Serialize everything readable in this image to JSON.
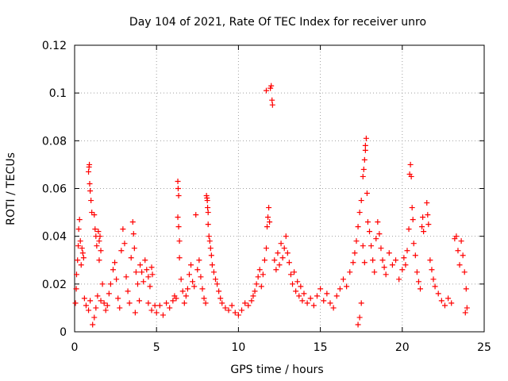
{
  "chart_data": {
    "type": "scatter",
    "title": "Day 104 of 2021, Rate Of TEC Index for receiver unro",
    "xlabel": "GPS time / hours",
    "ylabel": "ROTI / TECUs",
    "xlim": [
      0,
      25
    ],
    "ylim": [
      0,
      0.12
    ],
    "xticks": [
      "0",
      "5",
      "10",
      "15",
      "20",
      "25"
    ],
    "yticks": [
      "0",
      "0.02",
      "0.04",
      "0.06",
      "0.08",
      "0.1",
      "0.12"
    ],
    "grid": true,
    "marker": "+",
    "color": "#ff0000",
    "series": [
      {
        "points": [
          [
            0.05,
            0.012
          ],
          [
            0.1,
            0.018
          ],
          [
            0.12,
            0.024
          ],
          [
            0.18,
            0.03
          ],
          [
            0.22,
            0.036
          ],
          [
            0.25,
            0.043
          ],
          [
            0.3,
            0.047
          ],
          [
            0.35,
            0.038
          ],
          [
            0.4,
            0.028
          ],
          [
            0.45,
            0.035
          ],
          [
            0.5,
            0.033
          ],
          [
            0.55,
            0.031
          ],
          [
            0.6,
            0.014
          ],
          [
            0.7,
            0.011
          ],
          [
            0.85,
            0.009
          ],
          [
            0.95,
            0.013
          ],
          [
            0.85,
            0.067
          ],
          [
            0.88,
            0.069
          ],
          [
            0.9,
            0.07
          ],
          [
            0.92,
            0.062
          ],
          [
            0.95,
            0.059
          ],
          [
            1.0,
            0.055
          ],
          [
            1.05,
            0.05
          ],
          [
            1.2,
            0.049
          ],
          [
            1.25,
            0.043
          ],
          [
            1.3,
            0.04
          ],
          [
            1.35,
            0.036
          ],
          [
            1.45,
            0.042
          ],
          [
            1.5,
            0.038
          ],
          [
            1.55,
            0.04
          ],
          [
            1.6,
            0.034
          ],
          [
            1.5,
            0.03
          ],
          [
            1.1,
            0.003
          ],
          [
            1.2,
            0.006
          ],
          [
            1.3,
            0.01
          ],
          [
            1.4,
            0.015
          ],
          [
            1.6,
            0.013
          ],
          [
            1.7,
            0.02
          ],
          [
            1.8,
            0.012
          ],
          [
            1.9,
            0.009
          ],
          [
            2.0,
            0.011
          ],
          [
            2.1,
            0.016
          ],
          [
            2.2,
            0.02
          ],
          [
            2.35,
            0.026
          ],
          [
            2.45,
            0.029
          ],
          [
            2.55,
            0.022
          ],
          [
            2.65,
            0.014
          ],
          [
            2.75,
            0.01
          ],
          [
            2.85,
            0.034
          ],
          [
            2.95,
            0.043
          ],
          [
            3.05,
            0.037
          ],
          [
            3.15,
            0.023
          ],
          [
            3.25,
            0.017
          ],
          [
            3.35,
            0.012
          ],
          [
            3.45,
            0.031
          ],
          [
            3.55,
            0.046
          ],
          [
            3.6,
            0.041
          ],
          [
            3.65,
            0.035
          ],
          [
            3.75,
            0.025
          ],
          [
            3.85,
            0.02
          ],
          [
            3.95,
            0.013
          ],
          [
            3.7,
            0.008
          ],
          [
            4.0,
            0.028
          ],
          [
            4.1,
            0.025
          ],
          [
            4.2,
            0.021
          ],
          [
            4.3,
            0.03
          ],
          [
            4.4,
            0.026
          ],
          [
            4.5,
            0.023
          ],
          [
            4.6,
            0.019
          ],
          [
            4.7,
            0.027
          ],
          [
            4.75,
            0.024
          ],
          [
            4.5,
            0.012
          ],
          [
            4.7,
            0.009
          ],
          [
            4.9,
            0.011
          ],
          [
            5.0,
            0.008
          ],
          [
            5.2,
            0.011
          ],
          [
            5.4,
            0.007
          ],
          [
            5.6,
            0.012
          ],
          [
            5.8,
            0.01
          ],
          [
            6.0,
            0.013
          ],
          [
            6.1,
            0.015
          ],
          [
            6.2,
            0.014
          ],
          [
            6.3,
            0.063
          ],
          [
            6.32,
            0.06
          ],
          [
            6.35,
            0.057
          ],
          [
            6.3,
            0.048
          ],
          [
            6.35,
            0.044
          ],
          [
            6.4,
            0.038
          ],
          [
            6.4,
            0.031
          ],
          [
            6.5,
            0.022
          ],
          [
            6.6,
            0.017
          ],
          [
            6.7,
            0.012
          ],
          [
            6.8,
            0.015
          ],
          [
            6.9,
            0.018
          ],
          [
            7.0,
            0.024
          ],
          [
            7.1,
            0.028
          ],
          [
            7.2,
            0.021
          ],
          [
            7.3,
            0.019
          ],
          [
            7.4,
            0.049
          ],
          [
            7.5,
            0.026
          ],
          [
            7.6,
            0.03
          ],
          [
            7.7,
            0.023
          ],
          [
            7.8,
            0.018
          ],
          [
            7.9,
            0.014
          ],
          [
            8.0,
            0.012
          ],
          [
            8.05,
            0.057
          ],
          [
            8.08,
            0.056
          ],
          [
            8.1,
            0.055
          ],
          [
            8.12,
            0.052
          ],
          [
            8.15,
            0.05
          ],
          [
            8.15,
            0.045
          ],
          [
            8.2,
            0.04
          ],
          [
            8.25,
            0.038
          ],
          [
            8.3,
            0.035
          ],
          [
            8.35,
            0.032
          ],
          [
            8.4,
            0.028
          ],
          [
            8.5,
            0.025
          ],
          [
            8.6,
            0.022
          ],
          [
            8.7,
            0.02
          ],
          [
            8.8,
            0.017
          ],
          [
            8.9,
            0.014
          ],
          [
            9.0,
            0.012
          ],
          [
            9.2,
            0.01
          ],
          [
            9.4,
            0.009
          ],
          [
            9.6,
            0.011
          ],
          [
            9.8,
            0.008
          ],
          [
            10.0,
            0.007
          ],
          [
            10.2,
            0.009
          ],
          [
            10.4,
            0.012
          ],
          [
            10.6,
            0.011
          ],
          [
            10.8,
            0.013
          ],
          [
            10.9,
            0.015
          ],
          [
            11.0,
            0.017
          ],
          [
            11.1,
            0.02
          ],
          [
            11.2,
            0.023
          ],
          [
            11.3,
            0.026
          ],
          [
            11.4,
            0.019
          ],
          [
            11.5,
            0.024
          ],
          [
            11.6,
            0.03
          ],
          [
            11.7,
            0.035
          ],
          [
            11.75,
            0.044
          ],
          [
            11.8,
            0.048
          ],
          [
            11.85,
            0.052
          ],
          [
            11.9,
            0.046
          ],
          [
            11.7,
            0.101
          ],
          [
            11.95,
            0.102
          ],
          [
            12.0,
            0.103
          ],
          [
            12.05,
            0.097
          ],
          [
            12.08,
            0.095
          ],
          [
            12.2,
            0.03
          ],
          [
            12.3,
            0.026
          ],
          [
            12.4,
            0.033
          ],
          [
            12.5,
            0.028
          ],
          [
            12.6,
            0.037
          ],
          [
            12.7,
            0.031
          ],
          [
            12.8,
            0.035
          ],
          [
            12.9,
            0.04
          ],
          [
            13.0,
            0.033
          ],
          [
            13.1,
            0.029
          ],
          [
            13.2,
            0.024
          ],
          [
            13.3,
            0.02
          ],
          [
            13.4,
            0.025
          ],
          [
            13.5,
            0.017
          ],
          [
            13.6,
            0.021
          ],
          [
            13.7,
            0.015
          ],
          [
            13.8,
            0.019
          ],
          [
            13.9,
            0.013
          ],
          [
            14.0,
            0.016
          ],
          [
            14.2,
            0.012
          ],
          [
            14.4,
            0.014
          ],
          [
            14.6,
            0.011
          ],
          [
            14.8,
            0.015
          ],
          [
            15.0,
            0.018
          ],
          [
            15.2,
            0.013
          ],
          [
            15.4,
            0.016
          ],
          [
            15.6,
            0.012
          ],
          [
            15.8,
            0.01
          ],
          [
            16.0,
            0.015
          ],
          [
            16.2,
            0.018
          ],
          [
            16.4,
            0.022
          ],
          [
            16.6,
            0.019
          ],
          [
            16.8,
            0.025
          ],
          [
            17.0,
            0.029
          ],
          [
            17.1,
            0.033
          ],
          [
            17.2,
            0.038
          ],
          [
            17.3,
            0.044
          ],
          [
            17.4,
            0.05
          ],
          [
            17.5,
            0.055
          ],
          [
            17.6,
            0.065
          ],
          [
            17.65,
            0.068
          ],
          [
            17.7,
            0.072
          ],
          [
            17.75,
            0.076
          ],
          [
            17.8,
            0.081
          ],
          [
            17.75,
            0.078
          ],
          [
            17.85,
            0.058
          ],
          [
            17.9,
            0.046
          ],
          [
            17.6,
            0.036
          ],
          [
            17.7,
            0.029
          ],
          [
            17.5,
            0.012
          ],
          [
            17.4,
            0.006
          ],
          [
            17.3,
            0.003
          ],
          [
            18.0,
            0.042
          ],
          [
            18.1,
            0.036
          ],
          [
            18.2,
            0.03
          ],
          [
            18.3,
            0.025
          ],
          [
            18.4,
            0.039
          ],
          [
            18.5,
            0.046
          ],
          [
            18.6,
            0.041
          ],
          [
            18.7,
            0.035
          ],
          [
            18.8,
            0.03
          ],
          [
            18.9,
            0.027
          ],
          [
            19.0,
            0.024
          ],
          [
            19.2,
            0.033
          ],
          [
            19.4,
            0.028
          ],
          [
            19.6,
            0.03
          ],
          [
            19.8,
            0.022
          ],
          [
            20.0,
            0.026
          ],
          [
            20.1,
            0.031
          ],
          [
            20.2,
            0.028
          ],
          [
            20.3,
            0.034
          ],
          [
            20.4,
            0.043
          ],
          [
            20.45,
            0.066
          ],
          [
            20.5,
            0.07
          ],
          [
            20.55,
            0.065
          ],
          [
            20.6,
            0.052
          ],
          [
            20.65,
            0.047
          ],
          [
            20.7,
            0.037
          ],
          [
            20.8,
            0.032
          ],
          [
            20.9,
            0.025
          ],
          [
            21.0,
            0.021
          ],
          [
            21.1,
            0.018
          ],
          [
            21.2,
            0.044
          ],
          [
            21.25,
            0.048
          ],
          [
            21.3,
            0.042
          ],
          [
            21.5,
            0.054
          ],
          [
            21.55,
            0.049
          ],
          [
            21.6,
            0.045
          ],
          [
            21.7,
            0.03
          ],
          [
            21.8,
            0.026
          ],
          [
            21.9,
            0.022
          ],
          [
            22.0,
            0.019
          ],
          [
            22.2,
            0.016
          ],
          [
            22.4,
            0.013
          ],
          [
            22.6,
            0.011
          ],
          [
            22.8,
            0.014
          ],
          [
            23.0,
            0.012
          ],
          [
            23.2,
            0.039
          ],
          [
            23.3,
            0.04
          ],
          [
            23.4,
            0.034
          ],
          [
            23.5,
            0.028
          ],
          [
            23.6,
            0.038
          ],
          [
            23.7,
            0.032
          ],
          [
            23.8,
            0.025
          ],
          [
            23.9,
            0.018
          ],
          [
            23.95,
            0.01
          ],
          [
            23.85,
            0.008
          ]
        ]
      }
    ]
  }
}
